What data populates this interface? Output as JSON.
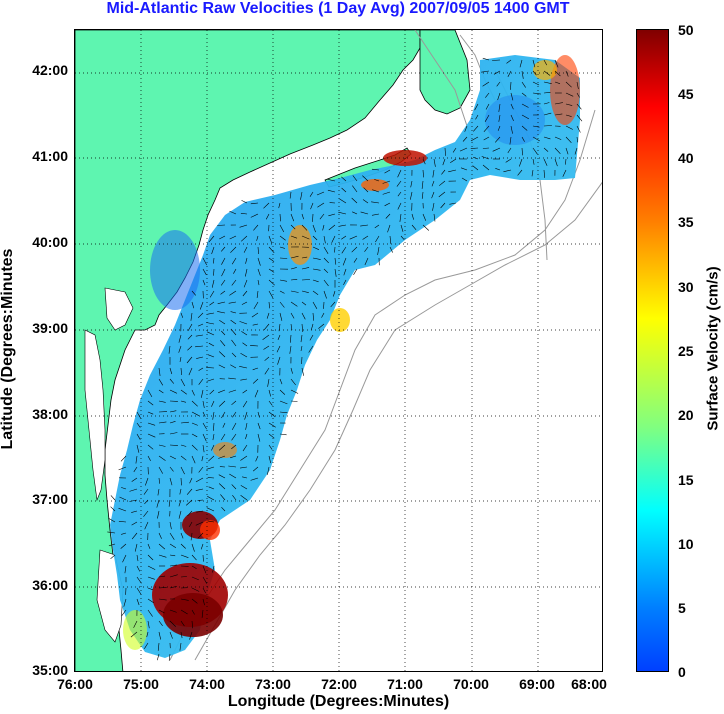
{
  "title": "Mid-Atlantic Raw Velocities (1 Day Avg) 2007/09/05 1400 GMT",
  "x_axis": {
    "label": "Longitude (Degrees:Minutes)",
    "ticks": [
      "76:00",
      "75:00",
      "74:00",
      "73:00",
      "72:00",
      "71:00",
      "70:00",
      "69:00",
      "68:00"
    ]
  },
  "y_axis": {
    "label": "Latitude (Degrees:Minutes",
    "ticks": [
      "42:00",
      "41:00",
      "40:00",
      "39:00",
      "38:00",
      "37:00",
      "36:00",
      "35:00"
    ]
  },
  "colorbar": {
    "label": "Surface Velocity (cm/s)",
    "ticks": [
      "50",
      "45",
      "40",
      "35",
      "30",
      "25",
      "20",
      "15",
      "10",
      "5",
      "0"
    ],
    "range": [
      0,
      50
    ],
    "colormap": "jet"
  },
  "map": {
    "lon_range": [
      -76,
      -68
    ],
    "lat_range": [
      35,
      42.5
    ],
    "land_color": "#5ef5b0",
    "coast_color": "#000000",
    "bathymetry_color": "#999999",
    "grid": "dotted"
  }
}
